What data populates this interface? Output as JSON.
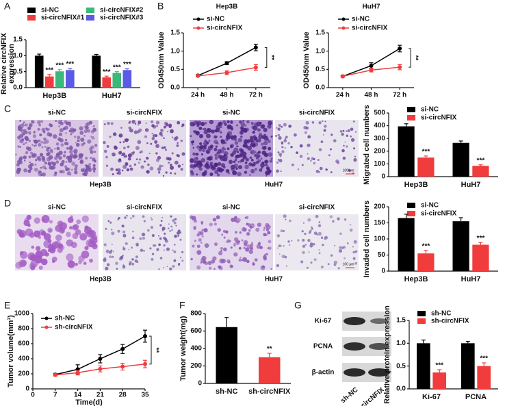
{
  "panel_labels": [
    "A",
    "B",
    "C",
    "D",
    "E",
    "F",
    "G"
  ],
  "micrographs": {
    "C": {
      "columns": [
        "si-NC",
        "si-circNFIX",
        "si-NC",
        "si-circNFIX"
      ],
      "groups": [
        "Hep3B",
        "HuH7"
      ],
      "scale_bar": "100 μm"
    },
    "D": {
      "columns": [
        "si-NC",
        "si-circNFIX",
        "si-NC",
        "si-circNFIX"
      ],
      "groups": [
        "Hep3B",
        "HuH7"
      ],
      "scale_bar": "100 μm"
    }
  },
  "western_blot": {
    "proteins": [
      "Ki-67",
      "PCNA",
      "β-actin"
    ],
    "lanes": [
      "sh-NC",
      "sh-circNFIX"
    ]
  },
  "chart_data": [
    {
      "type": "bar",
      "ylabel": [
        "Relative circNFIX",
        "expression"
      ],
      "categories": [
        "Hep3B",
        "HuH7"
      ],
      "series": [
        {
          "name": "si-NC",
          "color": "#000000",
          "values": [
            1.0,
            1.0
          ],
          "errors": [
            0.05,
            0.04
          ]
        },
        {
          "name": "si-circNFIX#1",
          "color": "#f03c3c",
          "values": [
            0.35,
            0.32
          ],
          "errors": [
            0.06,
            0.04
          ],
          "annotations": [
            "***",
            "***"
          ]
        },
        {
          "name": "si-circNFIX#2",
          "color": "#3cb87a",
          "values": [
            0.51,
            0.46
          ],
          "errors": [
            0.05,
            0.04
          ],
          "annotations": [
            "***",
            "***"
          ]
        },
        {
          "name": "si-circNFIX#3",
          "color": "#5a5ae6",
          "values": [
            0.55,
            0.55
          ],
          "errors": [
            0.05,
            0.04
          ],
          "annotations": [
            "***",
            "***"
          ]
        }
      ],
      "ylim": [
        0,
        1.5
      ],
      "yticks": [
        {
          "value": 0,
          "label": "0.0"
        },
        0.5,
        {
          "value": 1,
          "label": "1.0"
        },
        1.5
      ]
    },
    {
      "type": "line",
      "title": "Hep3B",
      "ylabel": "OD450nm Value",
      "categories": [
        "24 h",
        "48 h",
        "72 h"
      ],
      "series": [
        {
          "name": "si-NC",
          "color": "#000000",
          "values": [
            0.33,
            0.67,
            1.1
          ],
          "errors": [
            0.02,
            0.04,
            0.09
          ]
        },
        {
          "name": "si-circNFIX",
          "color": "#f03c3c",
          "values": [
            0.32,
            0.41,
            0.55
          ],
          "errors": [
            0.02,
            0.05,
            0.08
          ]
        }
      ],
      "annotation": "**",
      "ylim": [
        0,
        1.5
      ],
      "yticks": [
        {
          "value": 0,
          "label": "0.0"
        },
        0.5,
        {
          "value": 1,
          "label": "1.0"
        },
        1.5
      ]
    },
    {
      "type": "line",
      "title": "HuH7",
      "ylabel": "OD450nm Value",
      "categories": [
        "24 h",
        "48 h",
        "72 h"
      ],
      "series": [
        {
          "name": "si-NC",
          "color": "#000000",
          "values": [
            0.31,
            0.6,
            1.07
          ],
          "errors": [
            0.02,
            0.08,
            0.09
          ]
        },
        {
          "name": "si-circNFIX",
          "color": "#f03c3c",
          "values": [
            0.31,
            0.48,
            0.56
          ],
          "errors": [
            0.02,
            0.05,
            0.07
          ]
        }
      ],
      "annotation": "**",
      "ylim": [
        0,
        1.5
      ],
      "yticks": [
        {
          "value": 0,
          "label": "0.0"
        },
        0.5,
        {
          "value": 1,
          "label": "1.0"
        },
        1.5
      ]
    },
    {
      "type": "bar",
      "ylabel": "Migrated cell numbers",
      "categories": [
        "Hep3B",
        "HuH7"
      ],
      "series": [
        {
          "name": "si-NC",
          "color": "#000000",
          "values": [
            395,
            265
          ],
          "errors": [
            20,
            15
          ]
        },
        {
          "name": "si-circNFIX",
          "color": "#f03c3c",
          "values": [
            150,
            85
          ],
          "errors": [
            12,
            8
          ],
          "annotations": [
            "***",
            "***"
          ]
        }
      ],
      "ylim": [
        0,
        500
      ],
      "yticks": [
        0,
        100,
        200,
        300,
        400,
        500
      ]
    },
    {
      "type": "bar",
      "ylabel": "Invaded cell numbers",
      "categories": [
        "Hep3B",
        "HuH7"
      ],
      "series": [
        {
          "name": "si-NC",
          "color": "#000000",
          "values": [
            165,
            155
          ],
          "errors": [
            12,
            11
          ]
        },
        {
          "name": "si-circNFIX",
          "color": "#f03c3c",
          "values": [
            55,
            82
          ],
          "errors": [
            9,
            7
          ],
          "annotations": [
            "***",
            "***"
          ]
        }
      ],
      "ylim": [
        0,
        200
      ],
      "yticks": [
        0,
        50,
        100,
        150,
        200
      ]
    },
    {
      "type": "line",
      "xlabel": "Time(d)",
      "ylabel": "Tumor volume(mm³)",
      "x": [
        7,
        14,
        21,
        28,
        35
      ],
      "series": [
        {
          "name": "sh-NC",
          "color": "#000000",
          "values": [
            190,
            260,
            400,
            530,
            700
          ],
          "errors": [
            15,
            60,
            55,
            60,
            80
          ]
        },
        {
          "name": "sh-circNFIX",
          "color": "#f03c3c",
          "values": [
            185,
            215,
            265,
            295,
            330
          ],
          "errors": [
            15,
            30,
            40,
            45,
            50
          ]
        }
      ],
      "annotation": "**",
      "xlim": [
        0,
        35
      ],
      "xticks": [
        0,
        7,
        14,
        21,
        28,
        35
      ],
      "ylim": [
        0,
        1000
      ],
      "yticks": [
        0,
        200,
        400,
        600,
        800,
        1000
      ]
    },
    {
      "type": "bar",
      "ylabel": "Tumor weight(mg)",
      "categories": [
        "sh-NC",
        "sh-circNFIX"
      ],
      "values": [
        645,
        300
      ],
      "errors": [
        110,
        45
      ],
      "colors": [
        "#000000",
        "#f03c3c"
      ],
      "annotations": [
        null,
        "**"
      ],
      "ylim": [
        0,
        800
      ],
      "yticks": [
        0,
        200,
        400,
        600,
        800
      ]
    },
    {
      "type": "bar",
      "ylabel": "Relative protein expression",
      "categories": [
        "Ki-67",
        "PCNA"
      ],
      "series": [
        {
          "name": "sh-NC",
          "color": "#000000",
          "values": [
            1.0,
            1.0
          ],
          "errors": [
            0.07,
            0.04
          ]
        },
        {
          "name": "sh-circNFIX",
          "color": "#f03c3c",
          "values": [
            0.36,
            0.5
          ],
          "errors": [
            0.06,
            0.07
          ],
          "annotations": [
            "***",
            "***"
          ]
        }
      ],
      "ylim": [
        0,
        1.5
      ],
      "yticks": [
        {
          "value": 0,
          "label": "0.0"
        },
        0.5,
        {
          "value": 1,
          "label": "1.0"
        },
        1.5
      ]
    }
  ]
}
